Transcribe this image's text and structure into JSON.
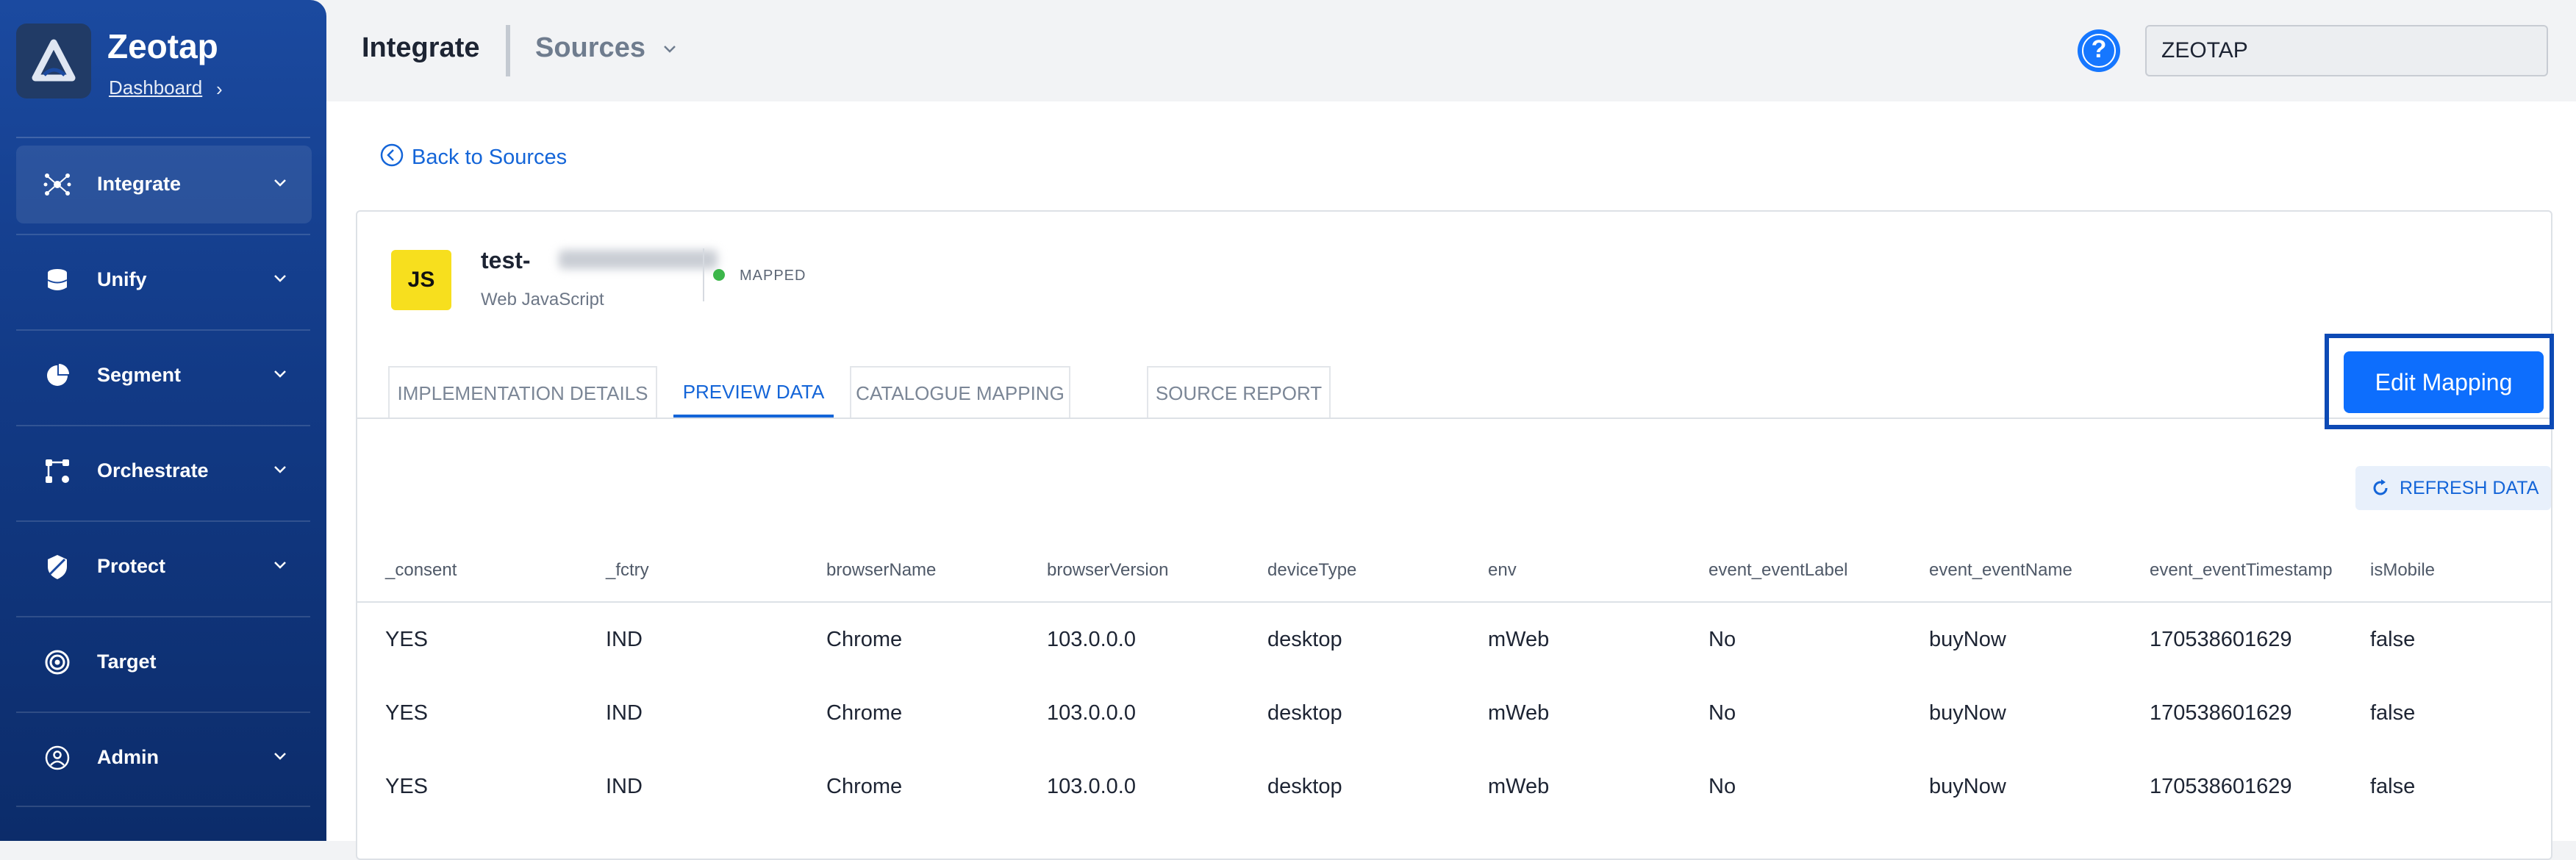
{
  "sidebar": {
    "brand": "Zeotap",
    "dashboard_link": "Dashboard",
    "items": [
      {
        "label": "Integrate",
        "icon": "integrate-icon"
      },
      {
        "label": "Unify",
        "icon": "database-icon"
      },
      {
        "label": "Segment",
        "icon": "pie-chart-icon"
      },
      {
        "label": "Orchestrate",
        "icon": "orchestrate-icon"
      },
      {
        "label": "Protect",
        "icon": "shield-icon"
      },
      {
        "label": "Target",
        "icon": "target-icon"
      },
      {
        "label": "Admin",
        "icon": "user-circle-icon"
      }
    ]
  },
  "topbar": {
    "breadcrumb_main": "Integrate",
    "breadcrumb_sub": "Sources",
    "org_value": "ZEOTAP"
  },
  "main": {
    "back_label": "Back to Sources",
    "source": {
      "title_prefix": "test-",
      "type": "Web JavaScript",
      "badge": "JS",
      "status": "MAPPED"
    },
    "tabs": [
      {
        "label": "IMPLEMENTATION DETAILS"
      },
      {
        "label": "PREVIEW DATA"
      },
      {
        "label": "CATALOGUE MAPPING"
      },
      {
        "label": "SOURCE REPORT"
      }
    ],
    "edit_mapping": "Edit Mapping",
    "refresh": "REFRESH DATA",
    "table": {
      "columns": [
        "_consent",
        "_fctry",
        "browserName",
        "browserVersion",
        "deviceType",
        "env",
        "event_eventLabel",
        "event_eventName",
        "event_eventTimestamp",
        "isMobile"
      ],
      "rows": [
        [
          "YES",
          "IND",
          "Chrome",
          "103.0.0.0",
          "desktop",
          "mWeb",
          "No",
          "buyNow",
          "170538601629",
          "false"
        ],
        [
          "YES",
          "IND",
          "Chrome",
          "103.0.0.0",
          "desktop",
          "mWeb",
          "No",
          "buyNow",
          "170538601629",
          "false"
        ],
        [
          "YES",
          "IND",
          "Chrome",
          "103.0.0.0",
          "desktop",
          "mWeb",
          "No",
          "buyNow",
          "170538601629",
          "false"
        ]
      ]
    }
  },
  "colors": {
    "accent": "#0d6efd",
    "sidebar": "#123a86",
    "status_ok": "#3cb64a"
  }
}
